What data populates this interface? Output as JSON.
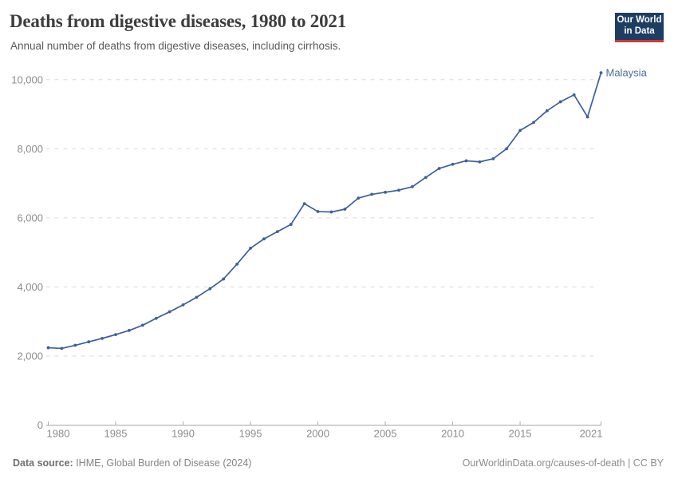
{
  "header": {
    "title": "Deaths from digestive diseases, 1980 to 2021",
    "subtitle": "Annual number of deaths from digestive diseases, including cirrhosis.",
    "logo": {
      "line1": "Our World",
      "line2": "in Data",
      "bg_color": "#1d3d63",
      "bar_color": "#d13832"
    }
  },
  "chart_data": {
    "type": "line",
    "title": "Deaths from digestive diseases, 1980 to 2021",
    "subtitle": "Annual number of deaths from digestive diseases, including cirrhosis.",
    "xlabel": "",
    "ylabel": "",
    "xlim": [
      1980,
      2021
    ],
    "ylim": [
      0,
      10000
    ],
    "grid": "horizontal-dashed",
    "legend_position": "end-of-line-label",
    "xticks": [
      1980,
      1985,
      1990,
      1995,
      2000,
      2005,
      2010,
      2015,
      2021
    ],
    "yticks": [
      0,
      2000,
      4000,
      6000,
      8000,
      10000
    ],
    "ytick_labels": [
      "0",
      "2,000",
      "4,000",
      "6,000",
      "8,000",
      "10,000"
    ],
    "x": [
      1980,
      1981,
      1982,
      1983,
      1984,
      1985,
      1986,
      1987,
      1988,
      1989,
      1990,
      1991,
      1992,
      1993,
      1994,
      1995,
      1996,
      1997,
      1998,
      1999,
      2000,
      2001,
      2002,
      2003,
      2004,
      2005,
      2006,
      2007,
      2008,
      2009,
      2010,
      2011,
      2012,
      2013,
      2014,
      2015,
      2016,
      2017,
      2018,
      2019,
      2020,
      2021
    ],
    "series": [
      {
        "name": "Malaysia",
        "values": [
          2240,
          2220,
          2310,
          2410,
          2510,
          2620,
          2740,
          2890,
          3090,
          3280,
          3480,
          3700,
          3950,
          4230,
          4660,
          5120,
          5390,
          5600,
          5810,
          6410,
          6180,
          6170,
          6250,
          6570,
          6680,
          6740,
          6800,
          6900,
          7170,
          7430,
          7550,
          7650,
          7620,
          7710,
          8000,
          8530,
          8760,
          9100,
          9360,
          9560,
          8920,
          10200
        ]
      }
    ],
    "colors": {
      "line": "#3e5f99",
      "entity_label": "#4c6a9c",
      "grid": "#dadada",
      "axis": "#a8a8a8",
      "tick_text": "#8c8c8c"
    }
  },
  "footer": {
    "source_label": "Data source:",
    "source_text": " IHME, Global Burden of Disease (2024)",
    "credit": "OurWorldinData.org/causes-of-death | CC BY"
  }
}
